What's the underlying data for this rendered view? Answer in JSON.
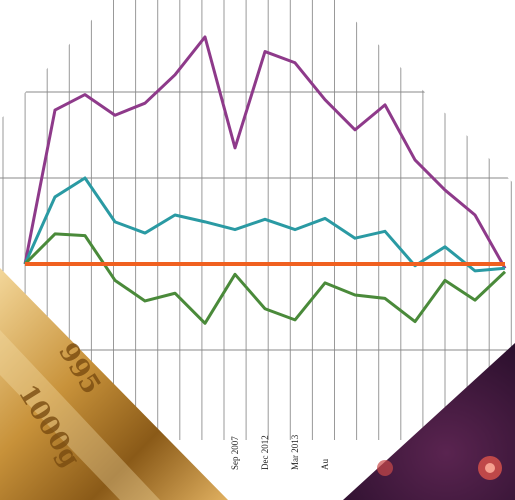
{
  "chart_data": {
    "type": "line",
    "categories": [
      null,
      null,
      null,
      null,
      null,
      null,
      null,
      "Sep 2007",
      "Dec 2012",
      "Mar 2013",
      "Au",
      null,
      null,
      null,
      null,
      null,
      null
    ],
    "series": [
      {
        "color": "#8e3a8a",
        "values": [
          0,
          1.79,
          1.97,
          1.73,
          1.87,
          2.2,
          2.64,
          1.35,
          2.47,
          2.34,
          1.91,
          1.56,
          1.85,
          1.21,
          0.86,
          0.57,
          -0.05
        ]
      },
      {
        "color": "#2a9aa3",
        "values": [
          0,
          0.78,
          1.0,
          0.49,
          0.36,
          0.57,
          0.49,
          0.4,
          0.52,
          0.4,
          0.53,
          0.3,
          0.38,
          -0.02,
          0.2,
          -0.08,
          -0.05
        ]
      },
      {
        "color": "#4a8a3a",
        "values": [
          0,
          0.35,
          0.33,
          -0.19,
          -0.43,
          -0.34,
          -0.69,
          -0.12,
          -0.52,
          -0.65,
          -0.22,
          -0.36,
          -0.4,
          -0.67,
          -0.19,
          -0.42,
          -0.09
        ]
      },
      {
        "color": "#f06020",
        "values": [
          0,
          0,
          0,
          0,
          0,
          0,
          0,
          0,
          0,
          0,
          0,
          0,
          0,
          0,
          0,
          0,
          0
        ]
      }
    ],
    "ylim": [
      -2,
      3
    ]
  },
  "gold_bars": {
    "labels": [
      "1000g",
      "995"
    ]
  }
}
